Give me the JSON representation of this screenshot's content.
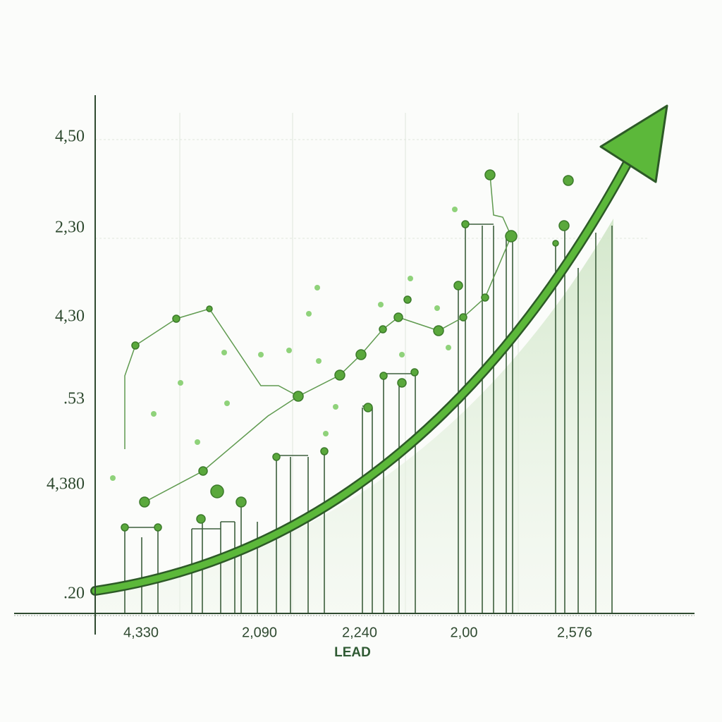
{
  "y_axis_labels": [
    "4,50",
    "2,30",
    "4,30",
    ".53",
    "4,380",
    ".20"
  ],
  "x_axis_labels": [
    "4,330",
    "2,090",
    "2,240",
    "2,00",
    "2,576"
  ],
  "x_axis_title": "LEAD"
}
